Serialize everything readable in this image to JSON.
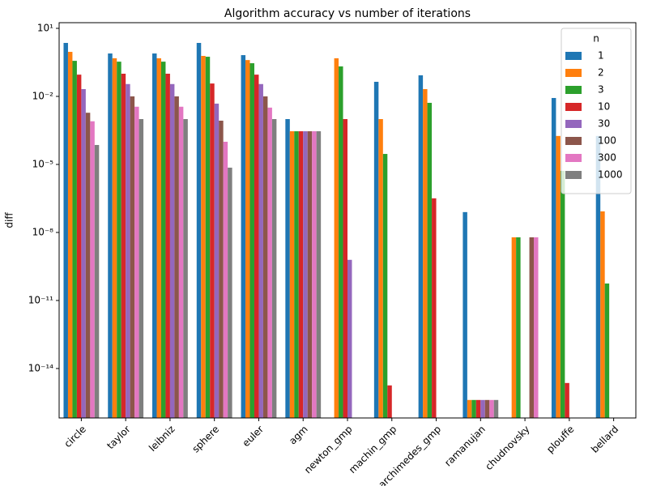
{
  "chart_data": {
    "type": "bar",
    "title": "Algorithm accuracy vs number of iterations",
    "y_label": "diff",
    "log_scale": true,
    "legend_title": "n",
    "legend_position": "upper right",
    "categories": [
      "circle",
      "taylor",
      "leibniz",
      "sphere",
      "euler",
      "agm",
      "newton_gmp",
      "machin_gmp",
      "archimedes_gmp",
      "ramanujan",
      "chudnovsky",
      "plouffe",
      "bellard"
    ],
    "ylim": [
      6.6e-17,
      17.8
    ],
    "yticks": [
      {
        "value": 10,
        "label": "10¹"
      },
      {
        "value": 0.01,
        "label": "10⁻²"
      },
      {
        "value": 1e-05,
        "label": "10⁻⁵"
      },
      {
        "value": 1e-08,
        "label": "10⁻⁸"
      },
      {
        "value": 1e-11,
        "label": "10⁻¹¹"
      },
      {
        "value": 1e-14,
        "label": "10⁻¹⁴"
      }
    ],
    "series": [
      {
        "name": "1",
        "color": "#1f77b4",
        "values": [
          2.28,
          0.78,
          0.78,
          2.28,
          0.66,
          0.001,
          null,
          0.044,
          0.085,
          7.9e-08,
          null,
          0.0085,
          0.00018
        ]
      },
      {
        "name": "2",
        "color": "#ff7f0e",
        "values": [
          0.92,
          0.48,
          0.48,
          0.61,
          0.4,
          0.00029,
          0.48,
          0.001,
          0.021,
          4.1e-16,
          6.1e-09,
          0.00018,
          8.5e-08
        ]
      },
      {
        "name": "3",
        "color": "#2ca02c",
        "values": [
          0.37,
          0.34,
          0.34,
          0.56,
          0.29,
          0.00029,
          0.21,
          2.9e-05,
          0.0052,
          4.1e-16,
          6.1e-09,
          5.2e-06,
          5.6e-11
        ]
      },
      {
        "name": "10",
        "color": "#d62728",
        "values": [
          0.091,
          0.1,
          0.1,
          0.037,
          0.091,
          0.00029,
          0.001,
          1.8e-15,
          3.2e-07,
          4.1e-16,
          null,
          2.3e-15,
          null
        ]
      },
      {
        "name": "30",
        "color": "#9467bd",
        "values": [
          0.021,
          0.035,
          0.035,
          0.0048,
          0.035,
          0.00029,
          6.2e-10,
          null,
          null,
          4.1e-16,
          null,
          null,
          null
        ]
      },
      {
        "name": "100",
        "color": "#8c564b",
        "values": [
          0.0019,
          0.01,
          0.01,
          0.00085,
          0.01,
          0.00029,
          null,
          null,
          null,
          4.1e-16,
          6.1e-09,
          null,
          null
        ]
      },
      {
        "name": "300",
        "color": "#e377c2",
        "values": [
          0.0008,
          0.0035,
          0.0035,
          0.0001,
          0.0032,
          0.00029,
          null,
          null,
          null,
          4.1e-16,
          6.1e-09,
          null,
          null
        ]
      },
      {
        "name": "1000",
        "color": "#7f7f7f",
        "values": [
          7.2e-05,
          0.001,
          0.001,
          7.2e-06,
          0.001,
          0.00029,
          null,
          null,
          null,
          4.1e-16,
          null,
          null,
          null
        ]
      }
    ]
  }
}
